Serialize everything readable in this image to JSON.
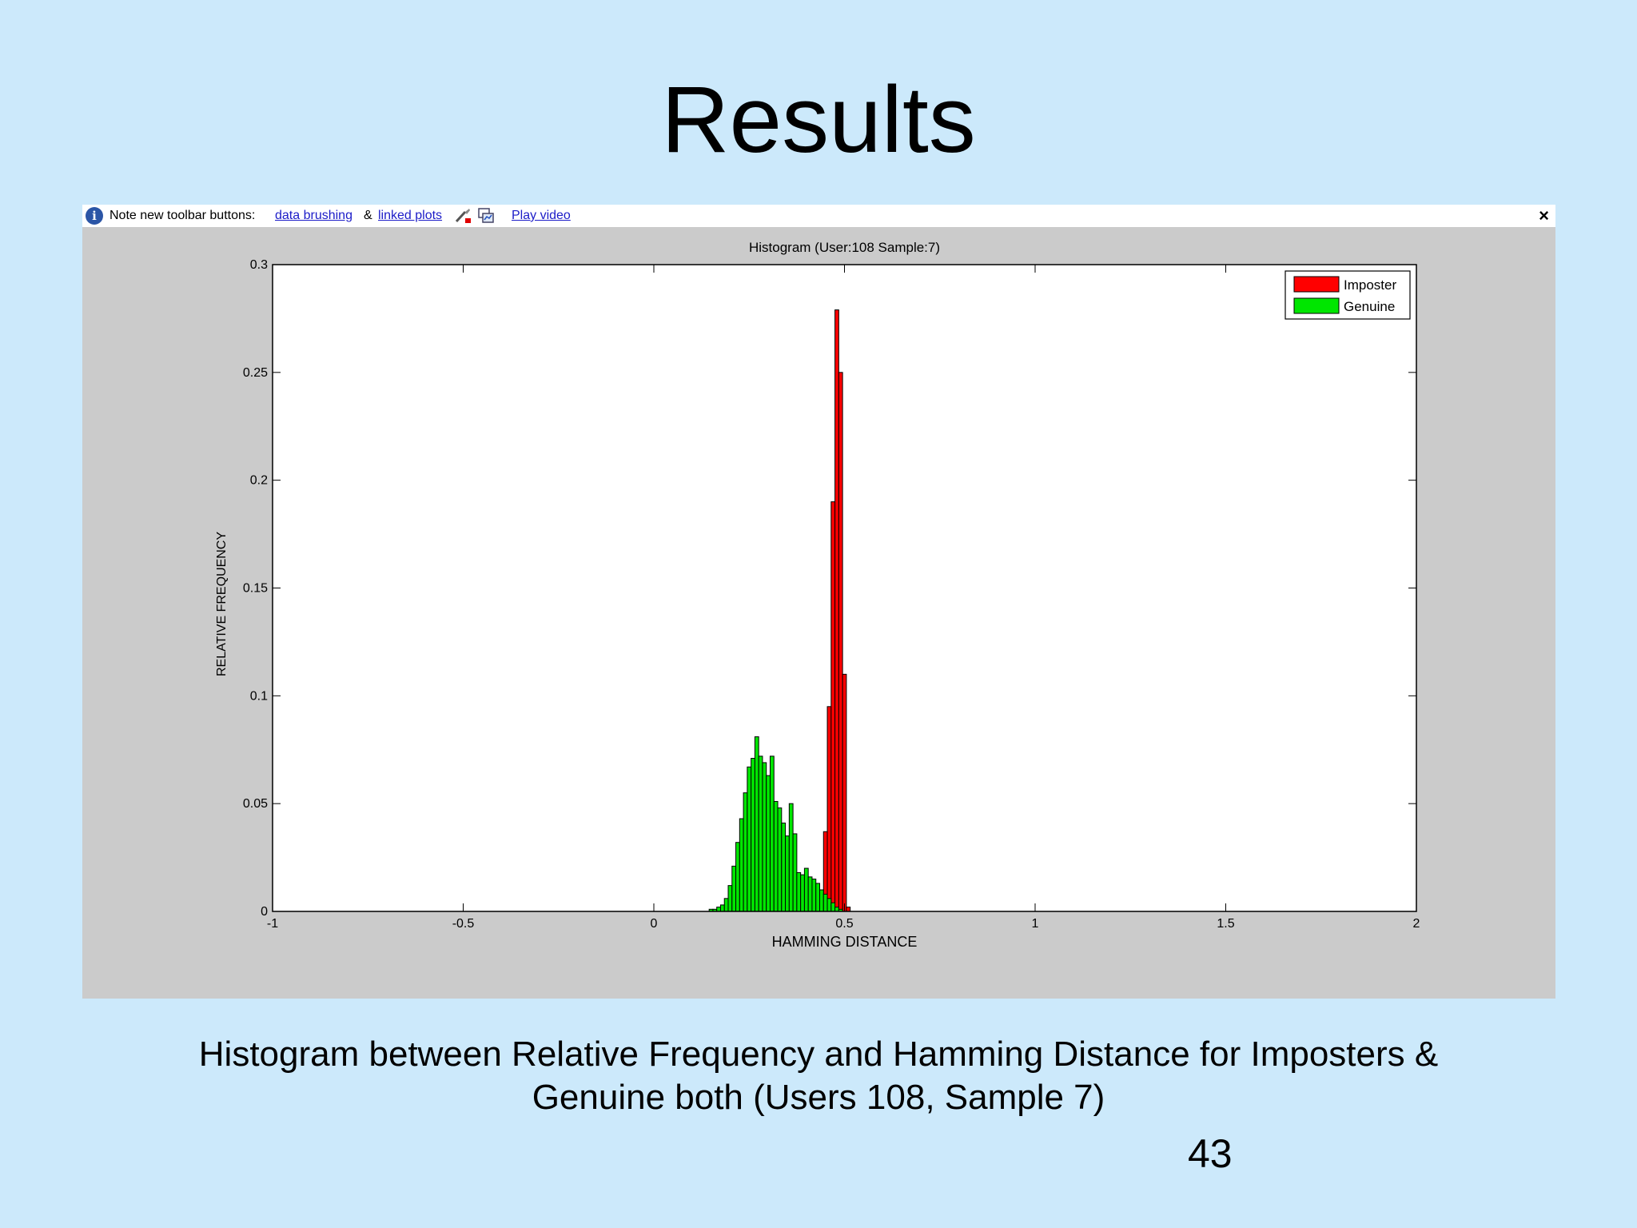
{
  "slide": {
    "title": "Results",
    "caption_line1": "Histogram between Relative Frequency and Hamming Distance for Imposters &",
    "caption_line2": "Genuine both (Users 108, Sample 7)",
    "page_number": "43"
  },
  "figure_toolbar": {
    "note_text": "Note new toolbar buttons:",
    "link_data_brushing": "data brushing",
    "ampersand": "&",
    "link_linked_plots": "linked plots",
    "link_play_video": "Play video",
    "close_symbol": "×",
    "info_symbol": "i",
    "icons": [
      "info-icon",
      "brush-icon",
      "linked-plots-icon",
      "close-icon"
    ]
  },
  "colors": {
    "imposter": "#ff0000",
    "genuine": "#00e600",
    "figure_background": "#cbcbcb",
    "slide_background": "#cce9fb"
  },
  "chart_data": {
    "type": "bar",
    "title": "Histogram (User:108 Sample:7)",
    "xlabel": "HAMMING DISTANCE",
    "ylabel": "RELATIVE FREQUENCY",
    "xlim": [
      -1,
      2
    ],
    "ylim": [
      0,
      0.3
    ],
    "xticks": [
      -1,
      -0.5,
      0,
      0.5,
      1,
      1.5,
      2
    ],
    "xtick_labels": [
      "-1",
      "-0.5",
      "0",
      "0.5",
      "1",
      "1.5",
      "2"
    ],
    "yticks": [
      0,
      0.05,
      0.1,
      0.15,
      0.2,
      0.25,
      0.3
    ],
    "ytick_labels": [
      "0",
      "0.05",
      "0.1",
      "0.15",
      "0.2",
      "0.25",
      "0.3"
    ],
    "grid": false,
    "legend_position": "top-right",
    "series": [
      {
        "name": "Imposter",
        "color": "#ff0000",
        "x": [
          0.44,
          0.45,
          0.46,
          0.47,
          0.48,
          0.49,
          0.5,
          0.51
        ],
        "values": [
          0.002,
          0.037,
          0.095,
          0.19,
          0.279,
          0.25,
          0.11,
          0.002
        ]
      },
      {
        "name": "Genuine",
        "color": "#00e600",
        "x": [
          0.15,
          0.16,
          0.17,
          0.18,
          0.19,
          0.2,
          0.21,
          0.22,
          0.23,
          0.24,
          0.25,
          0.26,
          0.27,
          0.28,
          0.29,
          0.3,
          0.31,
          0.32,
          0.33,
          0.34,
          0.35,
          0.36,
          0.37,
          0.38,
          0.39,
          0.4,
          0.41,
          0.42,
          0.43,
          0.44,
          0.45,
          0.46,
          0.47,
          0.48,
          0.49
        ],
        "values": [
          0.001,
          0.001,
          0.002,
          0.003,
          0.006,
          0.012,
          0.021,
          0.032,
          0.043,
          0.055,
          0.067,
          0.071,
          0.081,
          0.072,
          0.069,
          0.063,
          0.072,
          0.051,
          0.048,
          0.041,
          0.035,
          0.05,
          0.036,
          0.018,
          0.017,
          0.02,
          0.016,
          0.015,
          0.013,
          0.01,
          0.008,
          0.006,
          0.004,
          0.002,
          0.001
        ]
      }
    ]
  }
}
